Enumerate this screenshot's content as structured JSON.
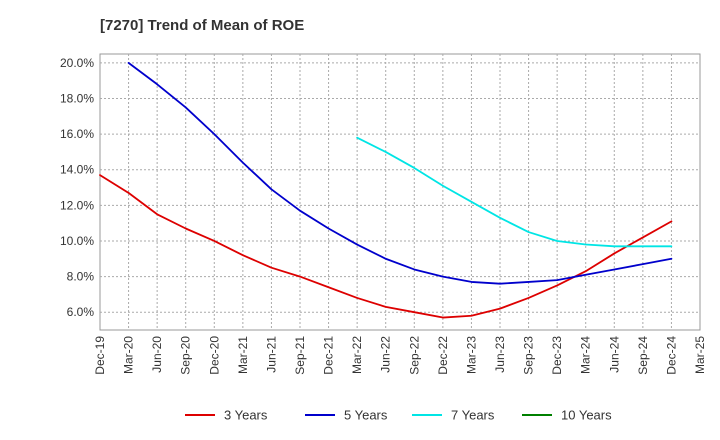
{
  "chart_data": {
    "type": "line",
    "title": "[7270]  Trend of Mean of ROE",
    "xlabel": "",
    "ylabel": "",
    "x_categories": [
      "Dec-19",
      "Mar-20",
      "Jun-20",
      "Sep-20",
      "Dec-20",
      "Mar-21",
      "Jun-21",
      "Sep-21",
      "Dec-21",
      "Mar-22",
      "Jun-22",
      "Sep-22",
      "Dec-22",
      "Mar-23",
      "Jun-23",
      "Sep-23",
      "Dec-23",
      "Mar-24",
      "Jun-24",
      "Sep-24",
      "Dec-24",
      "Mar-25"
    ],
    "y_ticks": [
      6.0,
      8.0,
      10.0,
      12.0,
      14.0,
      16.0,
      18.0,
      20.0
    ],
    "y_tick_labels": [
      "6.0%",
      "8.0%",
      "10.0%",
      "12.0%",
      "14.0%",
      "16.0%",
      "18.0%",
      "20.0%"
    ],
    "ylim": [
      5.0,
      20.5
    ],
    "grid": true,
    "legend_position": "bottom",
    "series": [
      {
        "name": "3 Years",
        "color": "#dd0000",
        "values": [
          13.7,
          12.7,
          11.5,
          10.7,
          10.0,
          9.2,
          8.5,
          8.0,
          7.4,
          6.8,
          6.3,
          6.0,
          5.7,
          5.8,
          6.2,
          6.8,
          7.5,
          8.3,
          9.3,
          10.2,
          11.1,
          null
        ]
      },
      {
        "name": "5 Years",
        "color": "#0000cc",
        "values": [
          null,
          20.0,
          18.8,
          17.5,
          16.0,
          14.4,
          12.9,
          11.7,
          10.7,
          9.8,
          9.0,
          8.4,
          8.0,
          7.7,
          7.6,
          7.7,
          7.8,
          8.1,
          8.4,
          8.7,
          9.0,
          null
        ]
      },
      {
        "name": "7 Years",
        "color": "#00e5e5",
        "values": [
          null,
          null,
          null,
          null,
          null,
          null,
          null,
          null,
          null,
          15.8,
          15.0,
          14.1,
          13.1,
          12.2,
          11.3,
          10.5,
          10.0,
          9.8,
          9.7,
          9.7,
          9.7,
          null
        ]
      },
      {
        "name": "10 Years",
        "color": "#008000",
        "values": []
      }
    ]
  }
}
